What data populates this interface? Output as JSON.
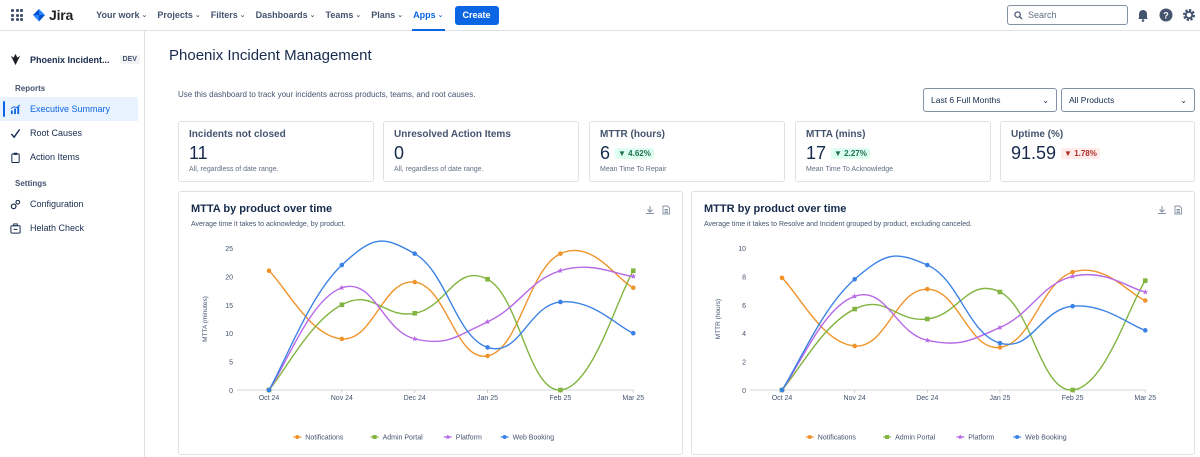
{
  "nav": {
    "brand": "Jira",
    "items": [
      {
        "label": "Your work",
        "active": false
      },
      {
        "label": "Projects",
        "active": false
      },
      {
        "label": "Filters",
        "active": false
      },
      {
        "label": "Dashboards",
        "active": false
      },
      {
        "label": "Teams",
        "active": false
      },
      {
        "label": "Plans",
        "active": false
      },
      {
        "label": "Apps",
        "active": true
      }
    ],
    "create_label": "Create",
    "search_placeholder": "Search"
  },
  "sidebar": {
    "project_name": "Phoenix Incident...",
    "project_badge": "DEV",
    "reports_label": "Reports",
    "reports": [
      {
        "label": "Executive Summary",
        "icon": "chart-icon",
        "active": true
      },
      {
        "label": "Root Causes",
        "icon": "check-icon",
        "active": false
      },
      {
        "label": "Action Items",
        "icon": "clipboard-icon",
        "active": false
      }
    ],
    "settings_label": "Settings",
    "settings": [
      {
        "label": "Configuration",
        "icon": "gear-icon"
      },
      {
        "label": "Helath Check",
        "icon": "briefcase-icon"
      }
    ]
  },
  "main": {
    "title": "Phoenix Incident Management",
    "description": "Use this dashboard to track your incidents across products, teams, and root causes.",
    "date_filter": "Last 6 Full Months",
    "product_filter": "All Products",
    "stats": [
      {
        "label": "Incidents not closed",
        "value": "11",
        "delta": "",
        "sub": "All, regardless of date range."
      },
      {
        "label": "Unresolved Action Items",
        "value": "0",
        "delta": "",
        "sub": "All, regardless of date range."
      },
      {
        "label": "MTTR (hours)",
        "value": "6",
        "delta": "▼ 4.62%",
        "delta_type": "good",
        "sub": "Mean Time To Repair"
      },
      {
        "label": "MTTA (mins)",
        "value": "17",
        "delta": "▼ 2.27%",
        "delta_type": "good",
        "sub": "Mean Time To Acknowledge"
      },
      {
        "label": "Uptime (%)",
        "value": "91.59",
        "delta": "▼ 1.78%",
        "delta_type": "bad",
        "sub": ""
      }
    ]
  },
  "colors": {
    "accent": "#0c66e4",
    "notifications": "#f0932b",
    "admin_portal": "#82b440",
    "platform": "#b769e6",
    "web_booking": "#3b82e6"
  },
  "chart_data": [
    {
      "type": "line",
      "title": "MTTA by product over time",
      "subtitle": "Average time it takes to acknowledge, by product.",
      "ylabel": "MTTA (minutes)",
      "xlabel": "",
      "categories": [
        "Oct 24",
        "Nov 24",
        "Dec 24",
        "Jan 25",
        "Feb 25",
        "Mar 25"
      ],
      "ylim": [
        0,
        25
      ],
      "yticks": [
        "0",
        "5",
        "10",
        "15",
        "20",
        "25"
      ],
      "legend": "bottom",
      "series": [
        {
          "name": "Notifications",
          "values": [
            21,
            9,
            19,
            6,
            24,
            18
          ]
        },
        {
          "name": "Admin Portal",
          "values": [
            0,
            15,
            13.5,
            19.5,
            0,
            21
          ]
        },
        {
          "name": "Platform",
          "values": [
            0,
            18,
            9,
            12,
            21,
            20
          ]
        },
        {
          "name": "Web Booking",
          "values": [
            0,
            22,
            24,
            7.5,
            15.5,
            10
          ]
        }
      ]
    },
    {
      "type": "line",
      "title": "MTTR by product over time",
      "subtitle": "Average time it takes to Resolve and Incident grouped by product, excluding canceled.",
      "ylabel": "MTTR (hours)",
      "xlabel": "",
      "categories": [
        "Oct 24",
        "Nov 24",
        "Dec 24",
        "Jan 25",
        "Feb 25",
        "Mar 25"
      ],
      "ylim": [
        0,
        10
      ],
      "yticks": [
        "0",
        "2",
        "4",
        "6",
        "8",
        "10"
      ],
      "legend": "bottom",
      "series": [
        {
          "name": "Notifications",
          "values": [
            7.9,
            3.1,
            7.1,
            3.0,
            8.3,
            6.3
          ]
        },
        {
          "name": "Admin Portal",
          "values": [
            0,
            5.7,
            5.0,
            6.9,
            0,
            7.7
          ]
        },
        {
          "name": "Platform",
          "values": [
            0,
            6.6,
            3.5,
            4.4,
            8.0,
            6.9
          ]
        },
        {
          "name": "Web Booking",
          "values": [
            0,
            7.8,
            8.8,
            3.3,
            5.9,
            4.2
          ]
        }
      ]
    }
  ]
}
